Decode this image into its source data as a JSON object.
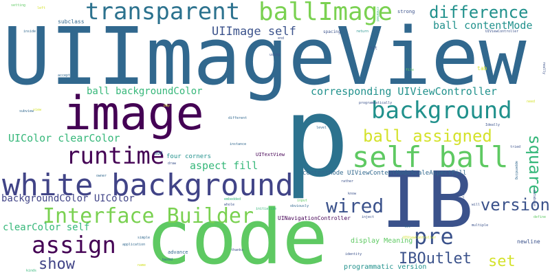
{
  "words": [
    {
      "text": "UIImageView",
      "color": "#31688e"
    },
    {
      "text": "p",
      "color": "#2c728e"
    },
    {
      "text": "code",
      "color": "#5ec962"
    },
    {
      "text": "IB",
      "color": "#3b528b"
    },
    {
      "text": "image",
      "color": "#440154"
    },
    {
      "text": "white background",
      "color": "#414487"
    },
    {
      "text": "transparent",
      "color": "#2c728e"
    },
    {
      "text": "ballImage",
      "color": "#7ad151"
    },
    {
      "text": "self ball",
      "color": "#5ec962"
    },
    {
      "text": "runtime",
      "color": "#440154"
    },
    {
      "text": "Interface Builder",
      "color": "#7ad151"
    },
    {
      "text": "background",
      "color": "#21918c"
    },
    {
      "text": "assign",
      "color": "#440154"
    },
    {
      "text": "difference",
      "color": "#21918c"
    },
    {
      "text": "pre",
      "color": "#3b528b"
    },
    {
      "text": "wired",
      "color": "#3b528b"
    },
    {
      "text": "ball assigned",
      "color": "#d4e22c"
    },
    {
      "text": "version",
      "color": "#3b528b"
    },
    {
      "text": "square",
      "color": "#35b779"
    },
    {
      "text": "set",
      "color": "#d4e22c"
    },
    {
      "text": "show",
      "color": "#414487"
    },
    {
      "text": "IBOutlet",
      "color": "#3b528b"
    },
    {
      "text": "UIImage self",
      "color": "#3b528b"
    },
    {
      "text": "ball contentMode",
      "color": "#21918c"
    },
    {
      "text": "ball backgroundColor",
      "color": "#35b779"
    },
    {
      "text": "corresponding UIViewController",
      "color": "#21918c"
    },
    {
      "text": "UIColor clearColor",
      "color": "#35b779"
    },
    {
      "text": "aspect fill",
      "color": "#35b779"
    },
    {
      "text": "backgroundColor UIColor",
      "color": "#414487"
    },
    {
      "text": "clearColor self",
      "color": "#35b779"
    },
    {
      "text": "display Meaning",
      "color": "#5ec962"
    },
    {
      "text": "programmatic version",
      "color": "#21918c"
    },
    {
      "text": "contentMode UIViewContentModeScaleAspectFill",
      "color": "#31688e"
    },
    {
      "text": "four corners",
      "color": "#21918c"
    },
    {
      "text": "UINavigationController",
      "color": "#440154"
    },
    {
      "text": "newline",
      "color": "#3b528b"
    },
    {
      "text": "advance",
      "color": "#31688e"
    },
    {
      "text": "subclass",
      "color": "#31688e"
    },
    {
      "text": "UITextView",
      "color": "#440154"
    },
    {
      "text": "strong",
      "color": "#3b528b"
    },
    {
      "text": "setting",
      "color": "#5ec962"
    },
    {
      "text": "inside",
      "color": "#31688e"
    },
    {
      "text": "spacing",
      "color": "#3b528b"
    },
    {
      "text": "return",
      "color": "#21918c"
    },
    {
      "text": "hit",
      "color": "#3b528b"
    },
    {
      "text": "add",
      "color": "#31688e"
    },
    {
      "text": "instance",
      "color": "#31688e"
    },
    {
      "text": "level",
      "color": "#31688e"
    },
    {
      "text": "tried",
      "color": "#3b528b"
    },
    {
      "text": "draw",
      "color": "#3b528b"
    },
    {
      "text": "owner",
      "color": "#31688e"
    },
    {
      "text": "thanks",
      "color": "#3b528b"
    },
    {
      "text": "whole",
      "color": "#3b528b"
    },
    {
      "text": "initialize",
      "color": "#35b779"
    },
    {
      "text": "obviously",
      "color": "#31688e"
    },
    {
      "text": "inject",
      "color": "#3b528b"
    },
    {
      "text": "identity",
      "color": "#3b528b"
    },
    {
      "text": "application",
      "color": "#31688e"
    },
    {
      "text": "simple",
      "color": "#31688e"
    },
    {
      "text": "based",
      "color": "#31688e"
    },
    {
      "text": "kinds",
      "color": "#35b779"
    },
    {
      "text": "multiple",
      "color": "#3b528b"
    },
    {
      "text": "will",
      "color": "#3b528b"
    },
    {
      "text": "know",
      "color": "#3b528b"
    },
    {
      "text": "rather",
      "color": "#3b528b"
    },
    {
      "text": "accept",
      "color": "#31688e"
    },
    {
      "text": "subview",
      "color": "#31688e"
    },
    {
      "text": "different",
      "color": "#31688e"
    },
    {
      "text": "programmatically",
      "color": "#3b528b"
    },
    {
      "text": "Ideally",
      "color": "#3b528b"
    },
    {
      "text": "tab",
      "color": "#d4e22c"
    },
    {
      "text": "file",
      "color": "#5ec962"
    },
    {
      "text": "using",
      "color": "#3b528b"
    },
    {
      "text": "end",
      "color": "#3b528b"
    },
    {
      "text": "really",
      "color": "#3b528b"
    },
    {
      "text": "UIViewController",
      "color": "#3b528b"
    },
    {
      "text": "appending",
      "color": "#31688e"
    },
    {
      "text": "entries",
      "color": "#3b528b"
    },
    {
      "text": "database",
      "color": "#3b528b"
    },
    {
      "text": "define",
      "color": "#5ec962"
    },
    {
      "text": "embedded",
      "color": "#35b779"
    },
    {
      "text": "input",
      "color": "#5ec962"
    },
    {
      "text": "let",
      "color": "#31688e"
    },
    {
      "text": "name",
      "color": "#d4e22c"
    },
    {
      "text": "view",
      "color": "#d4e22c"
    },
    {
      "text": "pay",
      "color": "#d4e22c"
    },
    {
      "text": "created",
      "color": "#35b779"
    },
    {
      "text": "need",
      "color": "#d4e22c"
    },
    {
      "text": "UIViewController",
      "color": "#d4e22c"
    },
    {
      "text": "left",
      "color": "#d4e22c"
    }
  ]
}
